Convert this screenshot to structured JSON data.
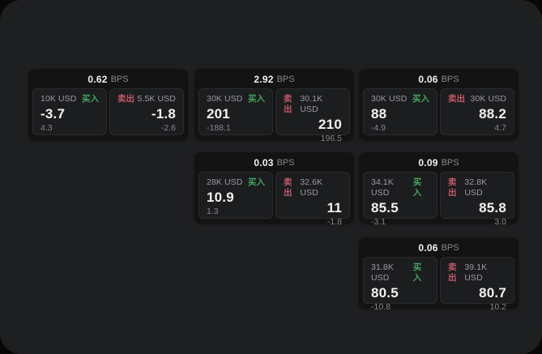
{
  "labels": {
    "bps": "BPS",
    "buy": "买入",
    "sell": "卖出"
  },
  "colors": {
    "window_bg": "#1e1f20",
    "card_bg": "#131314",
    "panel_bg": "#1c1d1f",
    "panel_border": "#2a2b2d",
    "buy_green": "#44a45f",
    "sell_red": "#c4586a",
    "value_bright": "#f2f2f3",
    "label_text": "#9b9ba0",
    "muted_text": "#87878c"
  },
  "cards": [
    {
      "bps": "0.62",
      "buy": {
        "size": "10K USD",
        "value": "-3.7",
        "delta": "4.3"
      },
      "sell": {
        "size": "5.5K USD",
        "value": "-1.8",
        "delta": "-2.6"
      }
    },
    {
      "bps": "2.92",
      "buy": {
        "size": "30K USD",
        "value": "201",
        "delta": "-188.1"
      },
      "sell": {
        "size": "30.1K USD",
        "value": "210",
        "delta": "196.5"
      }
    },
    {
      "bps": "0.06",
      "buy": {
        "size": "30K USD",
        "value": "88",
        "delta": "-4.9"
      },
      "sell": {
        "size": "30K USD",
        "value": "88.2",
        "delta": "4.7"
      }
    },
    {
      "bps": "0.03",
      "buy": {
        "size": "28K USD",
        "value": "10.9",
        "delta": "1.3"
      },
      "sell": {
        "size": "32.6K USD",
        "value": "11",
        "delta": "-1.8"
      }
    },
    {
      "bps": "0.09",
      "buy": {
        "size": "34.1K USD",
        "value": "85.5",
        "delta": "-3.1"
      },
      "sell": {
        "size": "32.8K USD",
        "value": "85.8",
        "delta": "3.0"
      }
    },
    {
      "bps": "0.06",
      "buy": {
        "size": "31.8K USD",
        "value": "80.5",
        "delta": "-10.8"
      },
      "sell": {
        "size": "39.1K USD",
        "value": "80.7",
        "delta": "10.2"
      }
    }
  ]
}
